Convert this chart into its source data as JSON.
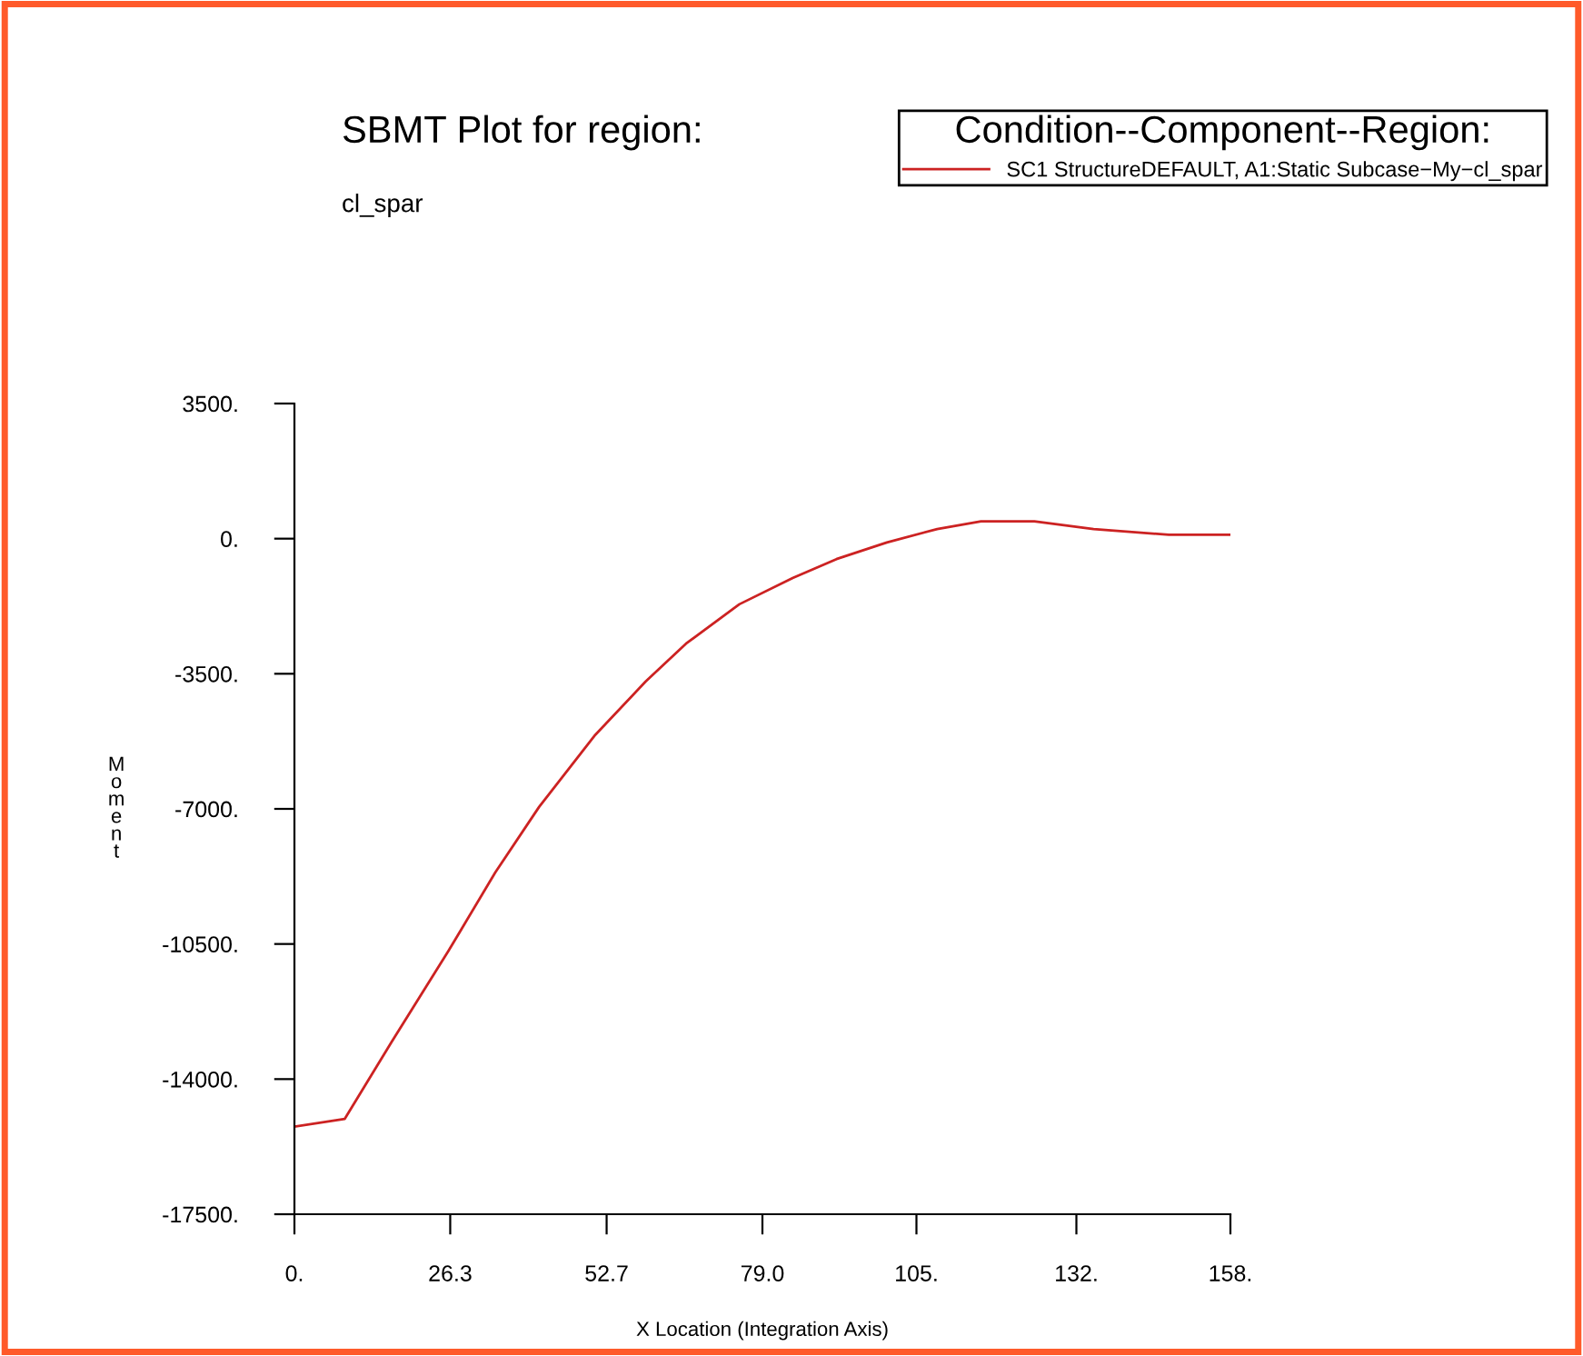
{
  "chart_data": {
    "type": "line",
    "title": "SBMT Plot for region:",
    "subtitle": "cl_spar",
    "xlabel": "X Location (Integration Axis)",
    "ylabel": "Moment",
    "legend_title": "Condition--Component--Region:",
    "legend": "top right",
    "grid": false,
    "marker": "none",
    "line_style": "solid",
    "xlim": [
      0,
      158
    ],
    "xticks": [
      {
        "value": 0,
        "label": "0."
      },
      {
        "value": 26.3,
        "label": "26.3"
      },
      {
        "value": 52.7,
        "label": "52.7"
      },
      {
        "value": 79.0,
        "label": "79.0"
      },
      {
        "value": 105,
        "label": "105."
      },
      {
        "value": 132,
        "label": "132."
      },
      {
        "value": 158,
        "label": "158."
      }
    ],
    "ylim": [
      -17500,
      3500
    ],
    "yticks": [
      {
        "value": 3500,
        "label": "3500."
      },
      {
        "value": 0,
        "label": "0."
      },
      {
        "value": -3500,
        "label": "-3500."
      },
      {
        "value": -7000,
        "label": "-7000."
      },
      {
        "value": -10500,
        "label": "-10500."
      },
      {
        "value": -14000,
        "label": "-14000."
      },
      {
        "value": -17500,
        "label": "-17500."
      }
    ],
    "series": [
      {
        "name": "SC1 StructureDEFAULT, A1:Static Subcase−My−cl_spar",
        "color": "#cc2222",
        "x": [
          0,
          8.5,
          16.4,
          26.0,
          33.9,
          41.3,
          50.8,
          59.3,
          66.1,
          75.1,
          84.1,
          91.5,
          100,
          108.5,
          115.9,
          124.9,
          134.9,
          147.6,
          158
        ],
        "values": [
          -15230,
          -15030,
          -13040,
          -10680,
          -8650,
          -6950,
          -5080,
          -3700,
          -2720,
          -1700,
          -1020,
          -530,
          -100,
          250,
          450,
          450,
          250,
          100,
          100
        ]
      }
    ]
  }
}
